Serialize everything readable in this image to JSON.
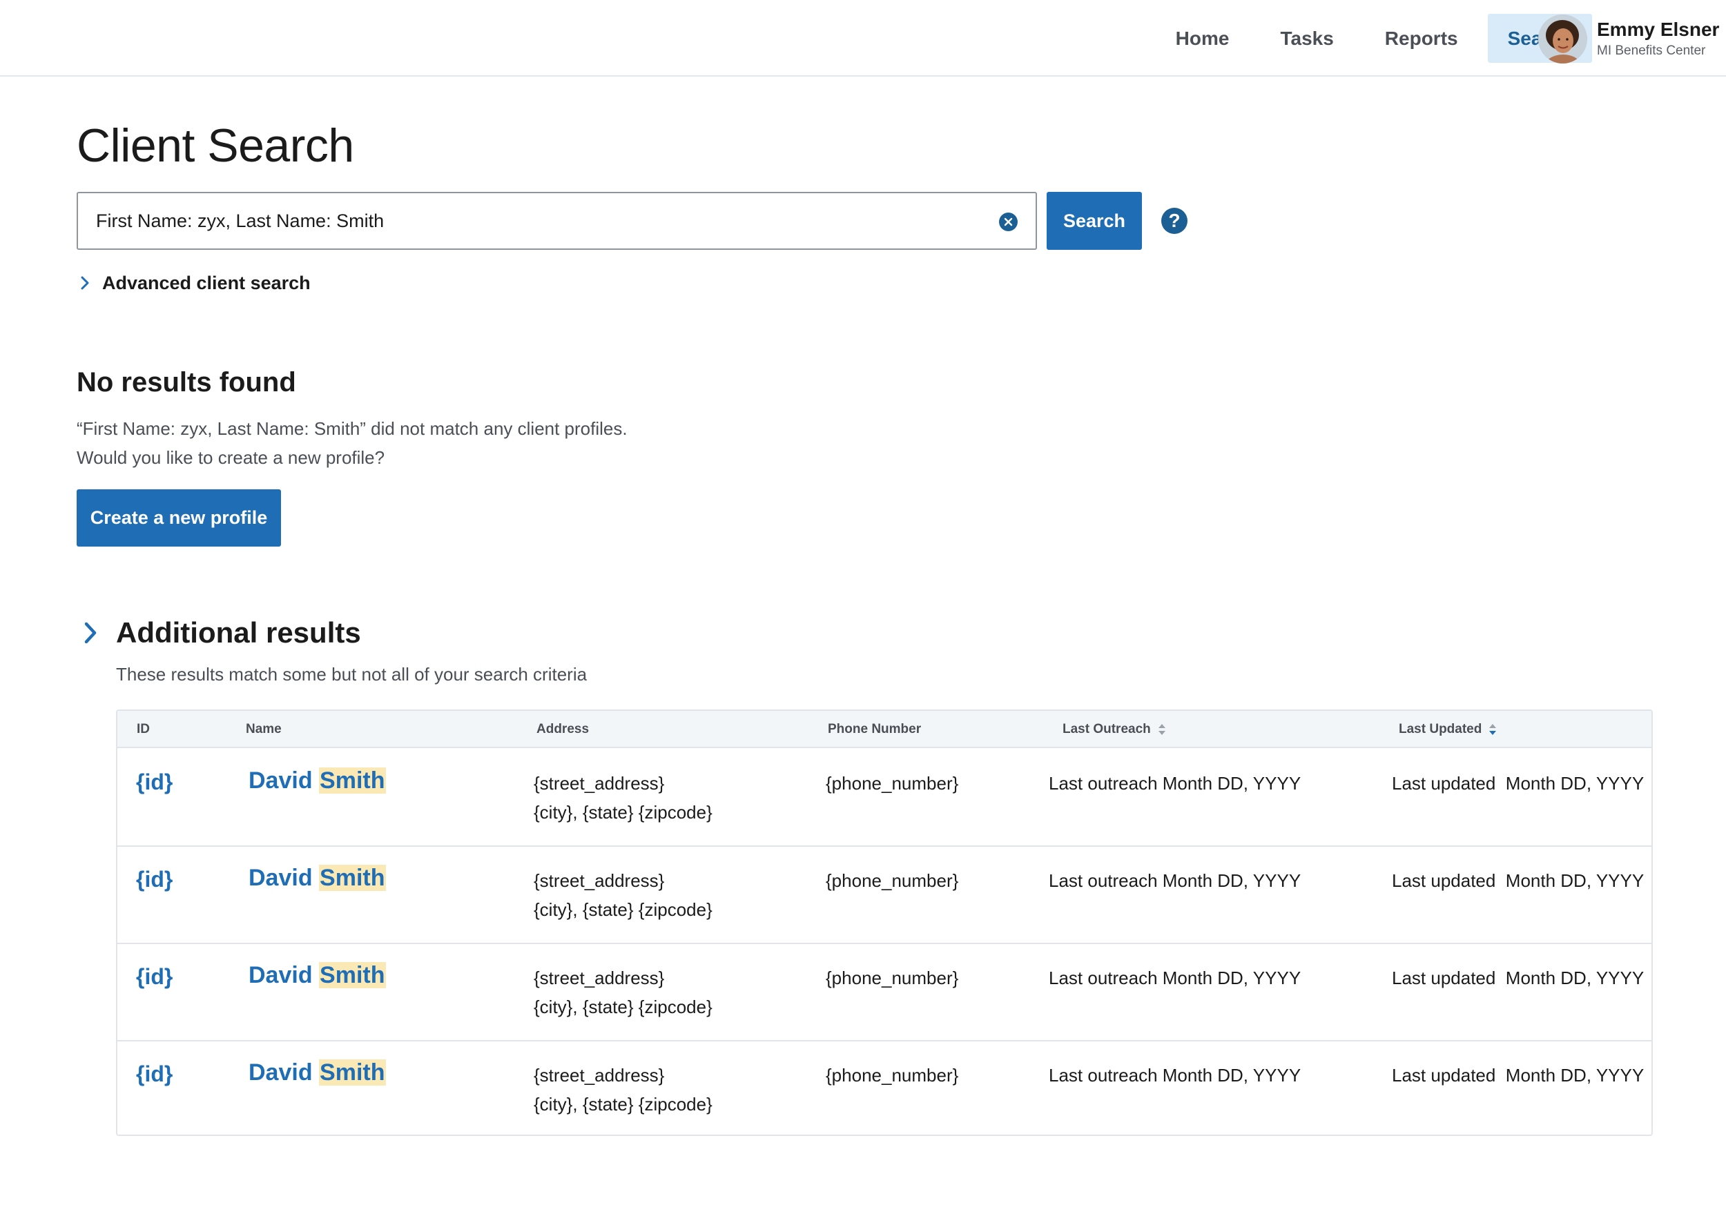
{
  "nav": {
    "items": [
      {
        "label": "Home"
      },
      {
        "label": "Tasks"
      },
      {
        "label": "Reports"
      },
      {
        "label": "Search",
        "active": true
      }
    ]
  },
  "user": {
    "name": "Emmy Elsner",
    "org": "MI Benefits Center"
  },
  "page": {
    "title": "Client Search"
  },
  "search": {
    "value": "First Name: zyx, Last Name: Smith",
    "button_label": "Search",
    "advanced_label": "Advanced client search",
    "help_symbol": "?"
  },
  "no_results": {
    "title": "No results found",
    "message_line1": "“First Name: zyx, Last Name: Smith” did not match any client profiles.",
    "message_line2": "Would you like to create a new profile?",
    "create_button_label": "Create a new profile"
  },
  "additional_results": {
    "title": "Additional results",
    "subtitle": "These results match some but not all of your search criteria",
    "columns": [
      "ID",
      "Name",
      "Address",
      "Phone Number",
      "Last Outreach",
      "Last Updated"
    ],
    "rows": [
      {
        "id": "{id}",
        "first_name": "David",
        "last_name": "Smith",
        "street": "{street_address}",
        "city_line": "{city}, {state} {zipcode}",
        "phone": "{phone_number}",
        "last_outreach": "Last outreach Month DD, YYYY",
        "last_updated": "Last updated  Month DD, YYYY"
      },
      {
        "id": "{id}",
        "first_name": "David",
        "last_name": "Smith",
        "street": "{street_address}",
        "city_line": "{city}, {state} {zipcode}",
        "phone": "{phone_number}",
        "last_outreach": "Last outreach Month DD, YYYY",
        "last_updated": "Last updated  Month DD, YYYY"
      },
      {
        "id": "{id}",
        "first_name": "David",
        "last_name": "Smith",
        "street": "{street_address}",
        "city_line": "{city}, {state} {zipcode}",
        "phone": "{phone_number}",
        "last_outreach": "Last outreach Month DD, YYYY",
        "last_updated": "Last updated  Month DD, YYYY"
      },
      {
        "id": "{id}",
        "first_name": "David",
        "last_name": "Smith",
        "street": "{street_address}",
        "city_line": "{city}, {state} {zipcode}",
        "phone": "{phone_number}",
        "last_outreach": "Last outreach Month DD, YYYY",
        "last_updated": "Last updated  Month DD, YYYY"
      }
    ]
  },
  "colors": {
    "primary": "#1f6db5",
    "primary_dark": "#1c5f95",
    "nav_active_bg": "#d9ebf8",
    "highlight": "#fbe9b5"
  }
}
